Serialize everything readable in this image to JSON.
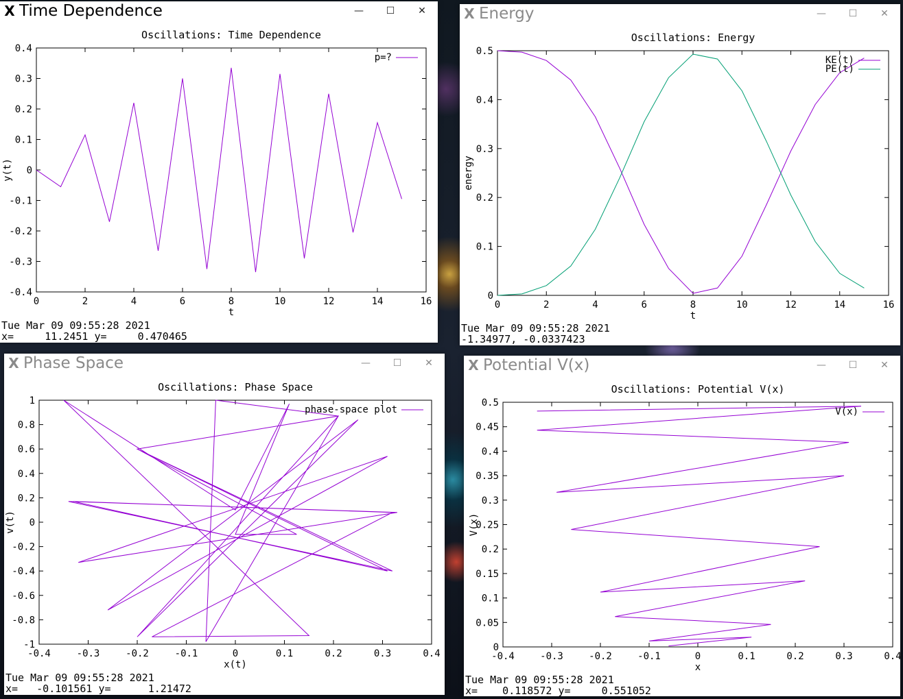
{
  "desktop": {
    "name": "desktop-background"
  },
  "windows": [
    {
      "id": "w1",
      "name": "time-dependence-window",
      "title": "Time Dependence",
      "active": true,
      "buttons": {
        "minimize": "—",
        "maximize": "☐",
        "close": "✕"
      },
      "status": {
        "date": "Tue Mar 09 09:55:28 2021",
        "coords": "x=     11.2451 y=     0.470465"
      },
      "chart_data": {
        "type": "line",
        "title": "Oscillations: Time Dependence",
        "xlabel": "t",
        "ylabel": "y(t)",
        "xlim": [
          0,
          16
        ],
        "ylim": [
          -0.4,
          0.4
        ],
        "xticks": [
          0,
          2,
          4,
          6,
          8,
          10,
          12,
          14,
          16
        ],
        "xticklabels": [
          "0",
          "2",
          "4",
          "6",
          "8",
          "10",
          "12",
          "14",
          "16"
        ],
        "yticks": [
          0.4,
          0.3,
          0.2,
          0.1,
          0,
          -0.1,
          -0.2,
          -0.3,
          -0.4
        ],
        "yticklabels": [
          "0.4",
          "0.3",
          "0.2",
          "0.1",
          "0",
          "-0.1",
          "-0.2",
          "-0.3",
          "-0.4"
        ],
        "legend": "top-right",
        "grid": false,
        "series": [
          {
            "name": "p=?",
            "color": "#9400d3",
            "x": [
              0,
              1,
              2,
              3,
              4,
              5,
              6,
              7,
              8,
              9,
              10,
              11,
              12,
              13,
              14,
              15
            ],
            "y": [
              0.0,
              -0.055,
              0.115,
              -0.17,
              0.22,
              -0.265,
              0.3,
              -0.325,
              0.335,
              -0.335,
              0.315,
              -0.29,
              0.25,
              -0.205,
              0.155,
              -0.095
            ]
          }
        ]
      }
    },
    {
      "id": "w2",
      "name": "energy-window",
      "title": "Energy",
      "active": false,
      "buttons": {
        "minimize": "—",
        "maximize": "☐",
        "close": "✕"
      },
      "status": {
        "date": "Tue Mar 09 09:55:28 2021",
        "coords": "-1.34977, -0.0337423"
      },
      "chart_data": {
        "type": "line",
        "title": "Oscillations: Energy",
        "xlabel": "t",
        "ylabel": "energy",
        "xlim": [
          0,
          16
        ],
        "ylim": [
          0,
          0.5
        ],
        "xticks": [
          0,
          2,
          4,
          6,
          8,
          10,
          12,
          14,
          16
        ],
        "xticklabels": [
          "0",
          "2",
          "4",
          "6",
          "8",
          "10",
          "12",
          "14",
          "16"
        ],
        "yticks": [
          0.5,
          0.4,
          0.3,
          0.2,
          0.1,
          0
        ],
        "yticklabels": [
          "0.5",
          "0.4",
          "0.3",
          "0.2",
          "0.1",
          "0"
        ],
        "legend": "top-right",
        "grid": false,
        "series": [
          {
            "name": "KE(t)",
            "color": "#9400d3",
            "x": [
              0,
              1,
              2,
              3,
              4,
              5,
              6,
              7,
              8,
              9,
              10,
              11,
              12,
              13,
              14,
              15
            ],
            "y": [
              0.5,
              0.497,
              0.48,
              0.44,
              0.365,
              0.26,
              0.145,
              0.055,
              0.004,
              0.015,
              0.08,
              0.185,
              0.295,
              0.39,
              0.455,
              0.485
            ]
          },
          {
            "name": "PE(t)",
            "color": "#009e73",
            "x": [
              0,
              1,
              2,
              3,
              4,
              5,
              6,
              7,
              8,
              9,
              10,
              11,
              12,
              13,
              14,
              15
            ],
            "y": [
              0.0,
              0.003,
              0.02,
              0.06,
              0.135,
              0.24,
              0.355,
              0.445,
              0.493,
              0.483,
              0.418,
              0.315,
              0.205,
              0.11,
              0.045,
              0.015
            ]
          }
        ]
      }
    },
    {
      "id": "w3",
      "name": "phase-space-window",
      "title": "Phase Space",
      "active": false,
      "buttons": {
        "minimize": "—",
        "maximize": "☐",
        "close": "✕"
      },
      "status": {
        "date": "Tue Mar 09 09:55:28 2021",
        "coords": "x=   -0.101561 y=      1.21472"
      },
      "chart_data": {
        "type": "line",
        "title": "Oscillations: Phase Space",
        "xlabel": "x(t)",
        "ylabel": "v(t)",
        "xlim": [
          -0.4,
          0.4
        ],
        "ylim": [
          -1,
          1
        ],
        "xticks": [
          -0.4,
          -0.3,
          -0.2,
          -0.1,
          0,
          0.1,
          0.2,
          0.3,
          0.4
        ],
        "xticklabels": [
          "-0.4",
          "-0.3",
          "-0.2",
          "-0.1",
          "0",
          "0.1",
          "0.2",
          "0.3",
          "0.4"
        ],
        "yticks": [
          1,
          0.8,
          0.6,
          0.4,
          0.2,
          0,
          -0.2,
          -0.4,
          -0.6,
          -0.8,
          -1
        ],
        "yticklabels": [
          "1",
          "0.8",
          "0.6",
          "0.4",
          "0.2",
          "0",
          "-0.2",
          "-0.4",
          "-0.6",
          "-0.8",
          "-1"
        ],
        "legend": "top-right",
        "grid": false,
        "series": [
          {
            "name": "phase-space plot",
            "color": "#9400d3",
            "x": [
              -0.34,
              0.33,
              -0.32,
              0.31,
              -0.26,
              0.25,
              -0.2,
              0.21,
              -0.04,
              -0.06,
              0.21,
              -0.2,
              0.31,
              -0.33,
              0.32,
              -0.17,
              0.15,
              -0.35,
              0.0,
              0.11,
              0.0,
              0.125,
              -0.2,
              0.32,
              -0.34
            ],
            "y": [
              0.17,
              0.08,
              -0.33,
              0.54,
              -0.72,
              0.84,
              -0.94,
              0.87,
              1.0,
              -0.98,
              0.87,
              0.6,
              -0.4,
              0.17,
              0.08,
              -0.94,
              -0.93,
              1.0,
              0.1,
              0.97,
              -0.1,
              -0.1,
              0.6,
              -0.4,
              0.17
            ]
          }
        ]
      }
    },
    {
      "id": "w4",
      "name": "potential-window",
      "title": "Potential V(x)",
      "active": false,
      "buttons": {
        "minimize": "—",
        "maximize": "☐",
        "close": "✕"
      },
      "status": {
        "date": "Tue Mar 09 09:55:28 2021",
        "coords": "x=    0.118572 y=     0.551052"
      },
      "chart_data": {
        "type": "line",
        "title": "Oscillations: Potential V(x)",
        "xlabel": "x",
        "ylabel": "V(x)",
        "xlim": [
          -0.4,
          0.4
        ],
        "ylim": [
          0,
          0.5
        ],
        "xticks": [
          -0.4,
          -0.3,
          -0.2,
          -0.1,
          0,
          0.1,
          0.2,
          0.3,
          0.4
        ],
        "xticklabels": [
          "-0.4",
          "-0.3",
          "-0.2",
          "-0.1",
          "0",
          "0.1",
          "0.2",
          "0.3",
          "0.4"
        ],
        "yticks": [
          0.5,
          0.45,
          0.4,
          0.35,
          0.3,
          0.25,
          0.2,
          0.15,
          0.1,
          0.05,
          0
        ],
        "yticklabels": [
          "0.5",
          "0.45",
          "0.4",
          "0.35",
          "0.3",
          "0.25",
          "0.2",
          "0.15",
          "0.1",
          "0.05",
          "0"
        ],
        "legend": "top-right",
        "grid": false,
        "series": [
          {
            "name": "V(x)",
            "color": "#9400d3",
            "x": [
              -0.06,
              0.11,
              -0.1,
              0.15,
              -0.17,
              0.22,
              -0.2,
              0.25,
              -0.26,
              0.3,
              -0.29,
              0.31,
              -0.33,
              0.335,
              -0.33
            ],
            "y": [
              0.002,
              0.02,
              0.012,
              0.046,
              0.062,
              0.135,
              0.112,
              0.205,
              0.24,
              0.35,
              0.316,
              0.418,
              0.443,
              0.492,
              0.482
            ]
          }
        ]
      }
    }
  ]
}
